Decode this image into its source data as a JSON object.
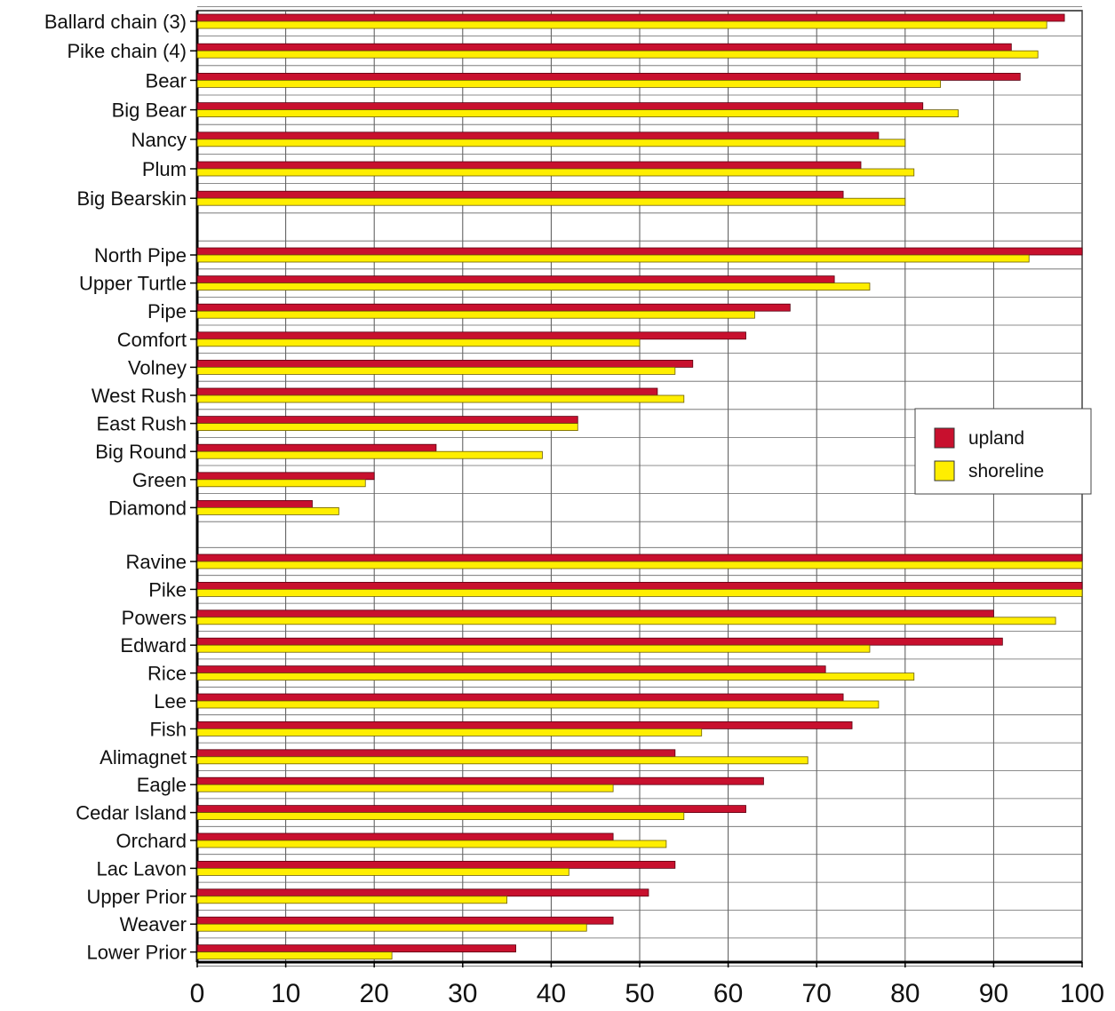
{
  "chart_data": {
    "type": "bar",
    "orientation": "horizontal",
    "title": "",
    "xlabel": "",
    "ylabel": "",
    "xlim": [
      0,
      100
    ],
    "x_ticks": [
      "0",
      "10",
      "20",
      "30",
      "40",
      "50",
      "60",
      "70",
      "80",
      "90",
      "100"
    ],
    "grid": true,
    "legend_position": "right-center",
    "groups": [
      {
        "categories": [
          "Ballard chain (3)",
          "Pike chain (4)",
          "Bear",
          "Big Bear",
          "Nancy",
          "Plum",
          "Big Bearskin"
        ],
        "upland": [
          98,
          92,
          93,
          82,
          77,
          75,
          73
        ],
        "shoreline": [
          96,
          95,
          84,
          86,
          80,
          81,
          80
        ]
      },
      {
        "categories": [
          "North Pipe",
          "Upper Turtle",
          "Pipe",
          "Comfort",
          "Volney",
          "West Rush",
          "East Rush",
          "Big Round",
          "Green",
          "Diamond"
        ],
        "upland": [
          100,
          72,
          67,
          62,
          56,
          52,
          43,
          27,
          20,
          13
        ],
        "shoreline": [
          94,
          76,
          63,
          50,
          54,
          55,
          43,
          39,
          19,
          16
        ]
      },
      {
        "categories": [
          "Ravine",
          "Pike",
          "Powers",
          "Edward",
          "Rice",
          "Lee",
          "Fish",
          "Alimagnet",
          "Eagle",
          "Cedar Island",
          "Orchard",
          "Lac Lavon",
          "Upper Prior",
          "Weaver",
          "Lower Prior"
        ],
        "upland": [
          100,
          100,
          90,
          91,
          71,
          73,
          74,
          54,
          64,
          62,
          47,
          54,
          51,
          47,
          36
        ],
        "shoreline": [
          100,
          100,
          97,
          76,
          81,
          77,
          57,
          69,
          47,
          55,
          53,
          42,
          35,
          44,
          22
        ]
      }
    ],
    "series": [
      {
        "name": "upland",
        "color": "#c8102e"
      },
      {
        "name": "shoreline",
        "color": "#ffee00"
      }
    ]
  }
}
